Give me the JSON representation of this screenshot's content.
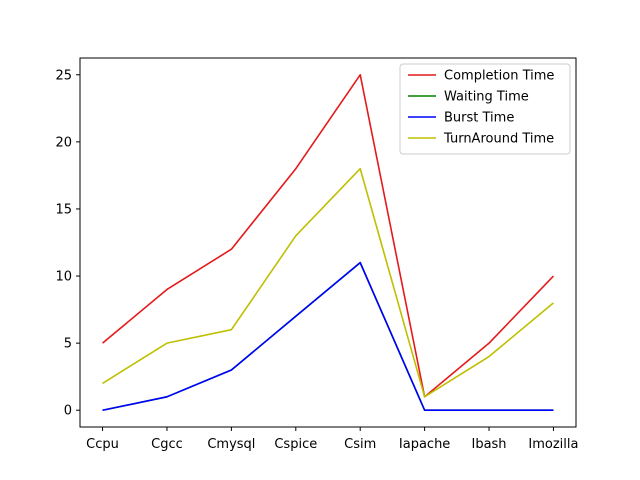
{
  "chart_data": {
    "type": "line",
    "categories": [
      "Ccpu",
      "Cgcc",
      "Cmysql",
      "Cspice",
      "Csim",
      "Iapache",
      "Ibash",
      "Imozilla"
    ],
    "ylim": [
      -1.25,
      26.25
    ],
    "yticks": [
      0,
      5,
      10,
      15,
      20,
      25
    ],
    "grid": false,
    "legend_position": "top-right",
    "series": [
      {
        "name": "Completion Time",
        "color": "#e41a1a",
        "values": [
          5,
          9,
          12,
          18,
          25,
          1,
          5,
          10
        ]
      },
      {
        "name": "Waiting Time",
        "color": "#008000",
        "values": [
          0,
          1,
          3,
          7,
          11,
          0,
          0,
          0
        ]
      },
      {
        "name": "Burst Time",
        "color": "#0000ff",
        "values": [
          0,
          1,
          3,
          7,
          11,
          0,
          0,
          0
        ]
      },
      {
        "name": "TurnAround Time",
        "color": "#bfbf00",
        "values": [
          2,
          5,
          6,
          13,
          18,
          1,
          4,
          8
        ]
      }
    ]
  }
}
